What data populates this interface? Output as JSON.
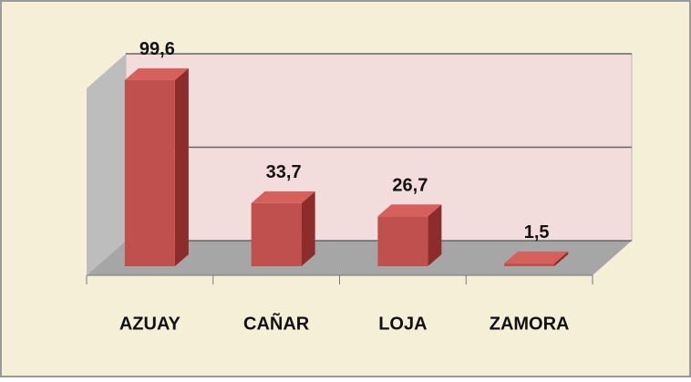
{
  "chart_data": {
    "type": "bar3d",
    "categories": [
      "AZUAY",
      "CAÑAR",
      "LOJA",
      "ZAMORA"
    ],
    "values": [
      99.6,
      33.7,
      26.7,
      1.5
    ],
    "value_labels": [
      "99,6",
      "33,7",
      "26,7",
      "1,5"
    ],
    "color": "#c0504d",
    "ylim": [
      0,
      100
    ],
    "yticks": [
      0,
      50,
      100
    ],
    "grid": true
  }
}
